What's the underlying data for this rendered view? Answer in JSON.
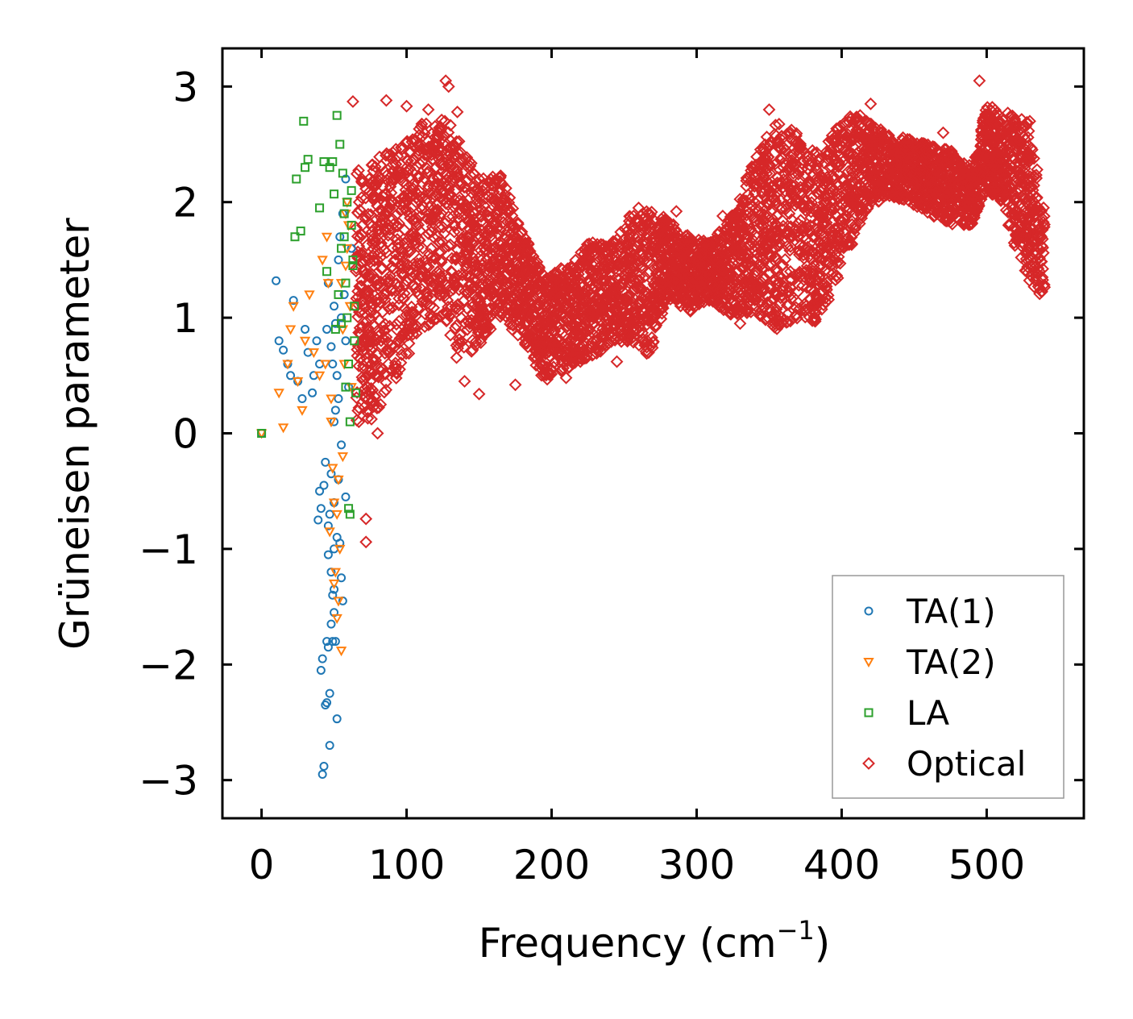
{
  "chart_data": {
    "type": "scatter",
    "title": "",
    "xlabel": "Frequency (cm",
    "xlabel_sup": "−1",
    "xlabel_close": ")",
    "ylabel": "Grüneisen parameter",
    "xlim": [
      -27,
      567
    ],
    "ylim": [
      -3.33,
      3.33
    ],
    "xticks": [
      0,
      100,
      200,
      300,
      400,
      500
    ],
    "xtick_labels": [
      "0",
      "100",
      "200",
      "300",
      "400",
      "500"
    ],
    "yticks": [
      -3,
      -2,
      -1,
      0,
      1,
      2,
      3
    ],
    "ytick_labels": [
      "−3",
      "−2",
      "−1",
      "0",
      "1",
      "2",
      "3"
    ],
    "legend_position": "lower-right",
    "series": [
      {
        "name": "TA(1)",
        "color": "#1f77b4",
        "marker": "circle",
        "x": [
          0,
          10,
          12,
          15,
          18,
          20,
          22,
          25,
          28,
          30,
          32,
          35,
          36,
          38,
          40,
          40,
          41,
          42,
          42,
          43,
          44,
          45,
          45,
          46,
          46,
          47,
          47,
          48,
          48,
          48,
          49,
          49,
          50,
          50,
          50,
          51,
          51,
          52,
          52,
          53,
          53,
          54,
          55,
          55,
          56,
          57,
          58,
          58,
          60,
          62,
          45,
          48,
          50,
          52,
          46,
          49,
          51,
          53,
          55,
          44,
          47,
          50,
          39,
          41,
          43,
          46,
          50,
          54,
          56,
          58
        ],
        "y": [
          0.0,
          1.32,
          0.8,
          0.72,
          0.6,
          0.5,
          1.15,
          0.45,
          0.3,
          0.9,
          0.7,
          0.35,
          0.5,
          0.8,
          0.6,
          -0.5,
          -2.05,
          -2.95,
          -1.95,
          -2.88,
          -2.35,
          -2.33,
          -1.8,
          -1.85,
          -0.8,
          -2.25,
          -2.7,
          -1.65,
          -1.2,
          -0.35,
          -1.8,
          -1.4,
          -1.0,
          -0.6,
          0.1,
          0.2,
          -1.8,
          -2.47,
          -0.9,
          -0.4,
          1.5,
          1.7,
          1.0,
          -0.1,
          1.9,
          1.2,
          0.8,
          2.2,
          0.4,
          1.6,
          0.9,
          0.75,
          1.1,
          0.5,
          1.3,
          0.6,
          0.95,
          0.3,
          -1.25,
          -0.25,
          -0.7,
          -1.55,
          -0.75,
          -0.65,
          -0.45,
          -1.05,
          -1.35,
          -0.95,
          -1.45,
          -0.55
        ]
      },
      {
        "name": "TA(2)",
        "color": "#ff7f0e",
        "marker": "triangle-down",
        "x": [
          0,
          12,
          15,
          18,
          20,
          22,
          25,
          28,
          30,
          33,
          36,
          40,
          42,
          45,
          46,
          48,
          49,
          50,
          51,
          52,
          53,
          54,
          55,
          56,
          57,
          58,
          59,
          60,
          61,
          62,
          47,
          50,
          53,
          56,
          59,
          44,
          48,
          52,
          55,
          58
        ],
        "y": [
          0.0,
          0.35,
          0.05,
          0.6,
          0.9,
          1.1,
          0.45,
          0.2,
          0.8,
          1.2,
          0.7,
          0.5,
          1.5,
          1.7,
          1.3,
          0.3,
          -0.3,
          -0.6,
          -1.2,
          -1.6,
          -1.45,
          -1.0,
          -1.88,
          -0.2,
          0.6,
          1.9,
          2.0,
          1.8,
          1.1,
          0.4,
          -0.85,
          -1.3,
          -0.4,
          0.9,
          1.6,
          0.6,
          0.1,
          -0.7,
          1.3,
          1.45
        ]
      },
      {
        "name": "LA",
        "color": "#2ca02c",
        "marker": "square",
        "x": [
          0,
          23,
          24,
          27,
          29,
          30,
          32,
          40,
          43,
          45,
          47,
          49,
          50,
          51,
          52,
          53,
          54,
          55,
          56,
          57,
          58,
          59,
          60,
          61,
          62,
          63,
          64,
          65,
          58,
          60,
          62,
          64,
          61,
          63,
          59,
          57,
          55
        ],
        "y": [
          0.0,
          1.7,
          2.2,
          1.75,
          2.7,
          2.3,
          2.37,
          1.95,
          2.35,
          1.4,
          2.3,
          2.35,
          2.07,
          0.9,
          2.75,
          1.2,
          2.5,
          1.6,
          2.25,
          1.9,
          0.4,
          1.0,
          -0.65,
          -0.7,
          2.1,
          1.5,
          0.8,
          0.35,
          1.3,
          0.6,
          1.8,
          1.1,
          0.1,
          1.45,
          2.0,
          1.7,
          0.95
        ]
      },
      {
        "name": "Optical",
        "color": "#d62728",
        "marker": "diamond",
        "x": [
          65,
          75,
          90,
          110,
          125,
          135,
          150,
          165,
          180,
          195,
          210,
          225,
          240,
          255,
          268,
          280,
          295,
          310,
          325,
          340,
          355,
          370,
          385,
          400,
          415,
          430,
          445,
          460,
          475,
          490,
          500,
          510,
          520,
          530,
          540
        ],
        "low": [
          0.05,
          0.1,
          0.4,
          0.9,
          1.0,
          0.6,
          0.75,
          1.0,
          0.8,
          0.45,
          0.55,
          0.65,
          0.75,
          0.8,
          0.65,
          1.15,
          1.05,
          1.15,
          1.0,
          1.05,
          0.9,
          1.0,
          0.95,
          1.4,
          1.9,
          2.05,
          2.0,
          1.9,
          1.8,
          1.8,
          2.1,
          2.0,
          1.6,
          1.3,
          1.15
        ],
        "high": [
          2.3,
          2.35,
          2.45,
          2.7,
          2.75,
          2.6,
          2.2,
          2.25,
          1.75,
          1.35,
          1.45,
          1.65,
          1.65,
          1.9,
          1.95,
          1.85,
          1.7,
          1.65,
          1.9,
          2.4,
          2.7,
          2.6,
          2.4,
          2.75,
          2.75,
          2.6,
          2.55,
          2.5,
          2.45,
          2.3,
          2.85,
          2.8,
          2.75,
          2.7,
          1.9
        ],
        "outliers_x": [
          63,
          72,
          72,
          80,
          86,
          127,
          129,
          150,
          175,
          210,
          245,
          286,
          318,
          330,
          495,
          100,
          115,
          200,
          260,
          350,
          420,
          470,
          140,
          135
        ],
        "outliers_y": [
          2.87,
          -0.74,
          -0.94,
          0.0,
          2.88,
          3.05,
          3.0,
          0.34,
          0.42,
          0.48,
          0.62,
          1.92,
          1.88,
          0.95,
          3.05,
          2.83,
          2.8,
          0.55,
          1.95,
          2.8,
          2.85,
          2.6,
          0.45,
          2.78
        ]
      }
    ]
  }
}
